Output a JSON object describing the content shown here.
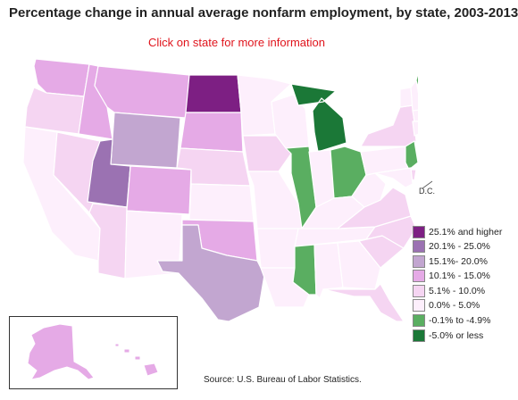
{
  "title": "Percentage change in annual average nonfarm employment, by state, 2003-2013",
  "hint": "Click on state for more information",
  "source": "Source:  U.S. Bureau of Labor Statistics.",
  "dc_label": "D.C.",
  "legend": [
    {
      "label": "25.1% and higher",
      "color": "#7d1f83"
    },
    {
      "label": "20.1% - 25.0%",
      "color": "#9b72b2"
    },
    {
      "label": "15.1%- 20.0%",
      "color": "#c2a6d0"
    },
    {
      "label": "10.1% - 15.0%",
      "color": "#e5aae6"
    },
    {
      "label": "5.1% - 10.0%",
      "color": "#f5d5f2"
    },
    {
      "label": "0.0% - 5.0%",
      "color": "#fdeffc"
    },
    {
      "label": "-0.1% to -4.9%",
      "color": "#5aae61"
    },
    {
      "label": "-5.0% or less",
      "color": "#1b7837"
    }
  ],
  "states": {
    "WA": 4,
    "OR": 5,
    "CA": 6,
    "NV": 5,
    "ID": 4,
    "MT": 4,
    "WY": 3,
    "UT": 2,
    "AZ": 5,
    "CO": 4,
    "NM": 6,
    "ND": 1,
    "SD": 4,
    "NE": 5,
    "KS": 6,
    "OK": 4,
    "TX": 3,
    "MN": 6,
    "IA": 5,
    "MO": 6,
    "AR": 6,
    "LA": 6,
    "WI": 6,
    "IL": 7,
    "MI": 8,
    "IN": 6,
    "OH": 7,
    "KY": 6,
    "TN": 6,
    "MS": 7,
    "AL": 6,
    "GA": 6,
    "FL": 5,
    "SC": 5,
    "NC": 5,
    "VA": 5,
    "WV": 6,
    "PA": 6,
    "NY": 5,
    "VT": 6,
    "NH": 6,
    "ME": 7,
    "MA": 6,
    "CT": 6,
    "RI": 8,
    "NJ": 7,
    "DE": 5,
    "MD": 6,
    "DC": 4,
    "AK": 4,
    "HI": 4
  }
}
